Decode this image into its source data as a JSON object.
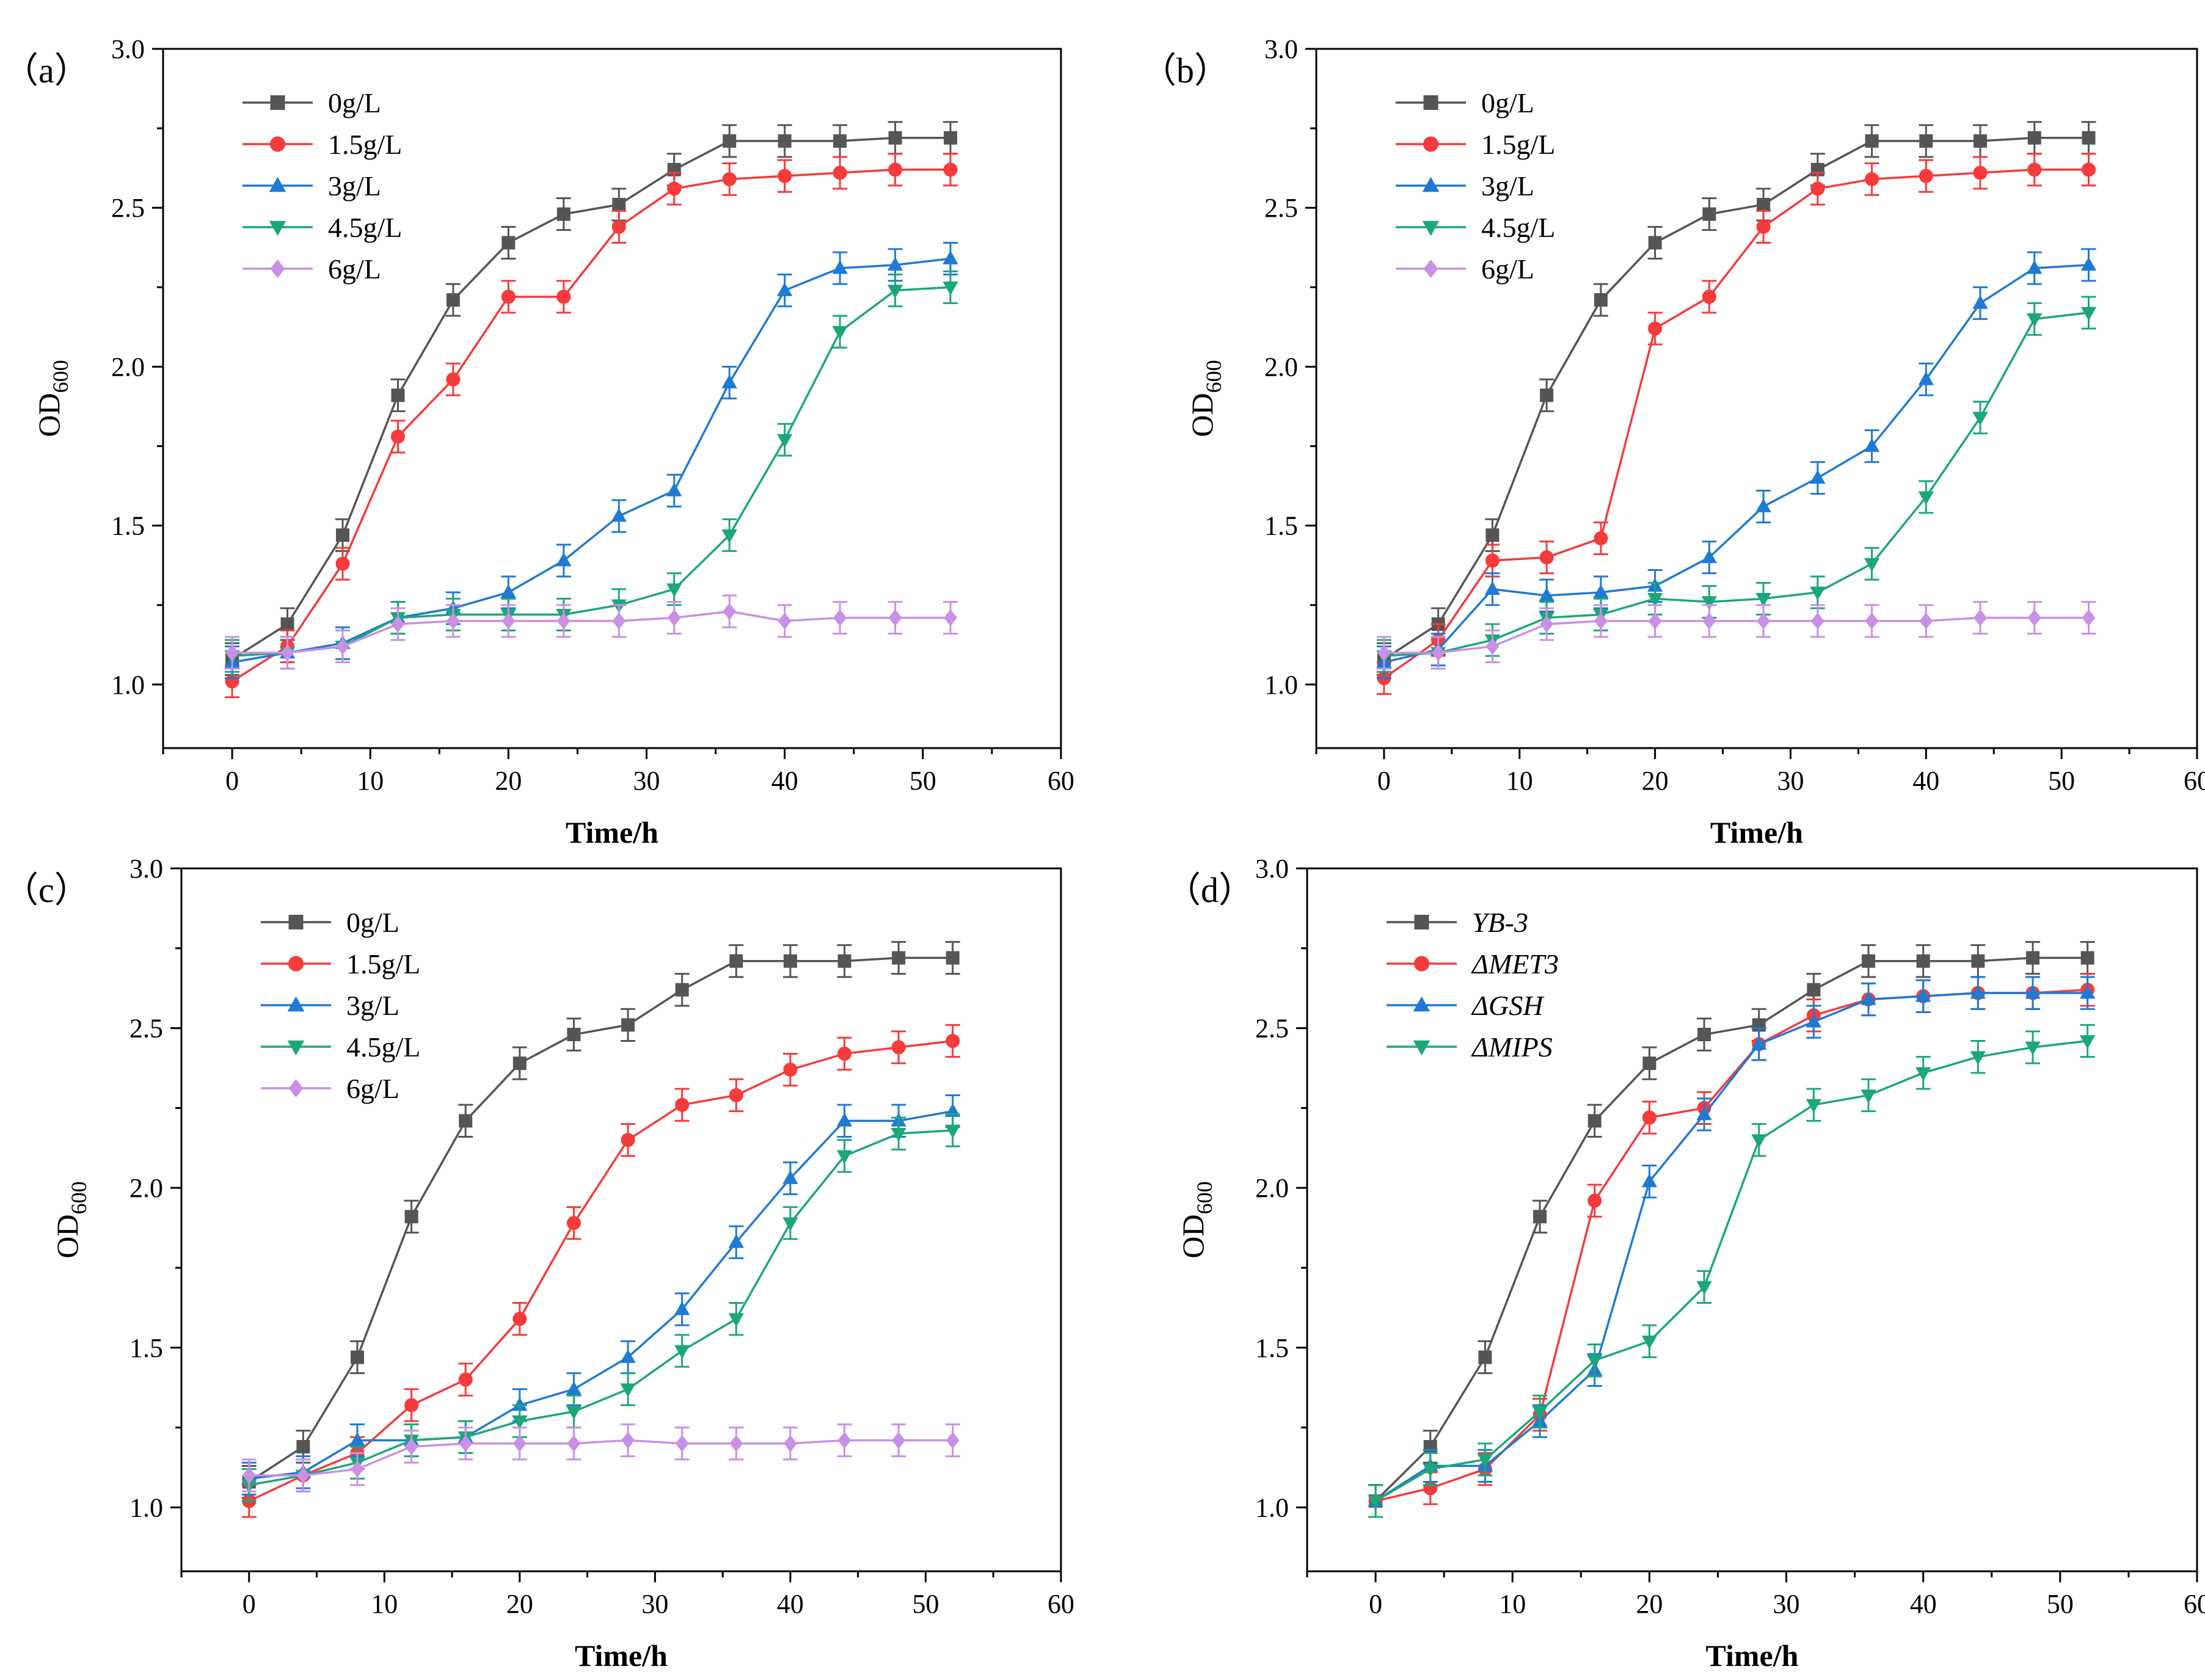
{
  "colors": {
    "black": "#555555",
    "red": "#f53b3b",
    "blue": "#1f7ad4",
    "green": "#1ca77a",
    "violet": "#c990e6"
  },
  "chart_data": [
    {
      "panel_label": "（a）",
      "type": "line",
      "xlabel": "Time/h",
      "ylabel_main": "OD",
      "ylabel_sub": "600",
      "xlim": [
        -5,
        60
      ],
      "ylim": [
        0.8,
        3.0
      ],
      "xticks": [
        "0",
        "10",
        "20",
        "30",
        "40",
        "50",
        "60"
      ],
      "yticks": [
        "1.0",
        "1.5",
        "2.0",
        "2.5",
        "3.0"
      ],
      "legend_position": "top-left",
      "x": [
        0,
        4,
        8,
        12,
        16,
        20,
        24,
        28,
        32,
        36,
        40,
        44,
        48,
        52
      ],
      "series": [
        {
          "name": "0g/L",
          "italic": false,
          "color": "#555555",
          "marker": "square",
          "values": [
            1.08,
            1.19,
            1.47,
            1.91,
            2.21,
            2.39,
            2.48,
            2.51,
            2.62,
            2.71,
            2.71,
            2.71,
            2.72,
            2.72
          ],
          "error": 0.05
        },
        {
          "name": "1.5g/L",
          "italic": false,
          "color": "#f53b3b",
          "marker": "circle",
          "values": [
            1.01,
            1.12,
            1.38,
            1.78,
            1.96,
            2.22,
            2.22,
            2.44,
            2.56,
            2.59,
            2.6,
            2.61,
            2.62,
            2.62
          ],
          "error": 0.05
        },
        {
          "name": "3g/L",
          "italic": false,
          "color": "#1f7ad4",
          "marker": "triangle-up",
          "values": [
            1.07,
            1.1,
            1.13,
            1.21,
            1.24,
            1.29,
            1.39,
            1.53,
            1.61,
            1.95,
            2.24,
            2.31,
            2.32,
            2.34
          ],
          "error": 0.05
        },
        {
          "name": "4.5g/L",
          "italic": false,
          "color": "#1ca77a",
          "marker": "triangle-down",
          "values": [
            1.09,
            1.1,
            1.12,
            1.21,
            1.22,
            1.22,
            1.22,
            1.25,
            1.3,
            1.47,
            1.77,
            2.11,
            2.24,
            2.25
          ],
          "error": 0.05
        },
        {
          "name": "6g/L",
          "italic": false,
          "color": "#c990e6",
          "marker": "diamond",
          "values": [
            1.1,
            1.1,
            1.12,
            1.19,
            1.2,
            1.2,
            1.2,
            1.2,
            1.21,
            1.23,
            1.2,
            1.21,
            1.21,
            1.21
          ],
          "error": 0.05
        }
      ]
    },
    {
      "panel_label": "（b）",
      "type": "line",
      "xlabel": "Time/h",
      "ylabel_main": "OD",
      "ylabel_sub": "600",
      "xlim": [
        -5,
        60
      ],
      "ylim": [
        0.8,
        3.0
      ],
      "xticks": [
        "0",
        "10",
        "20",
        "30",
        "40",
        "50",
        "60"
      ],
      "yticks": [
        "1.0",
        "1.5",
        "2.0",
        "2.5",
        "3.0"
      ],
      "legend_position": "top-left",
      "x": [
        0,
        4,
        8,
        12,
        16,
        20,
        24,
        28,
        32,
        36,
        40,
        44,
        48,
        52
      ],
      "series": [
        {
          "name": "0g/L",
          "italic": false,
          "color": "#555555",
          "marker": "square",
          "values": [
            1.08,
            1.19,
            1.47,
            1.91,
            2.21,
            2.39,
            2.48,
            2.51,
            2.62,
            2.71,
            2.71,
            2.71,
            2.72,
            2.72
          ],
          "error": 0.05
        },
        {
          "name": "1.5g/L",
          "italic": false,
          "color": "#f53b3b",
          "marker": "circle",
          "values": [
            1.02,
            1.14,
            1.39,
            1.4,
            1.46,
            2.12,
            2.22,
            2.44,
            2.56,
            2.59,
            2.6,
            2.61,
            2.62,
            2.62
          ],
          "error": 0.05
        },
        {
          "name": "3g/L",
          "italic": false,
          "color": "#1f7ad4",
          "marker": "triangle-up",
          "values": [
            1.07,
            1.11,
            1.3,
            1.28,
            1.29,
            1.31,
            1.4,
            1.56,
            1.65,
            1.75,
            1.96,
            2.2,
            2.31,
            2.32
          ],
          "error": 0.05
        },
        {
          "name": "4.5g/L",
          "italic": false,
          "color": "#1ca77a",
          "marker": "triangle-down",
          "values": [
            1.09,
            1.1,
            1.14,
            1.21,
            1.22,
            1.27,
            1.26,
            1.27,
            1.29,
            1.38,
            1.59,
            1.84,
            2.15,
            2.17
          ],
          "error": 0.05
        },
        {
          "name": "6g/L",
          "italic": false,
          "color": "#c990e6",
          "marker": "diamond",
          "values": [
            1.1,
            1.1,
            1.12,
            1.19,
            1.2,
            1.2,
            1.2,
            1.2,
            1.2,
            1.2,
            1.2,
            1.21,
            1.21,
            1.21
          ],
          "error": 0.05
        }
      ]
    },
    {
      "panel_label": "（c）",
      "type": "line",
      "xlabel": "Time/h",
      "ylabel_main": "OD",
      "ylabel_sub": "600",
      "xlim": [
        -5,
        60
      ],
      "ylim": [
        0.8,
        3.0
      ],
      "xticks": [
        "0",
        "10",
        "20",
        "30",
        "40",
        "50",
        "60"
      ],
      "yticks": [
        "1.0",
        "1.5",
        "2.0",
        "2.5",
        "3.0"
      ],
      "legend_position": "top-left",
      "x": [
        0,
        4,
        8,
        12,
        16,
        20,
        24,
        28,
        32,
        36,
        40,
        44,
        48,
        52
      ],
      "series": [
        {
          "name": "0g/L",
          "italic": false,
          "color": "#555555",
          "marker": "square",
          "values": [
            1.08,
            1.19,
            1.47,
            1.91,
            2.21,
            2.39,
            2.48,
            2.51,
            2.62,
            2.71,
            2.71,
            2.71,
            2.72,
            2.72
          ],
          "error": 0.05
        },
        {
          "name": "1.5g/L",
          "italic": false,
          "color": "#f53b3b",
          "marker": "circle",
          "values": [
            1.02,
            1.1,
            1.17,
            1.32,
            1.4,
            1.59,
            1.89,
            2.15,
            2.26,
            2.29,
            2.37,
            2.42,
            2.44,
            2.46
          ],
          "error": 0.05
        },
        {
          "name": "3g/L",
          "italic": false,
          "color": "#1f7ad4",
          "marker": "triangle-up",
          "values": [
            1.09,
            1.11,
            1.21,
            1.21,
            1.22,
            1.32,
            1.37,
            1.47,
            1.62,
            1.83,
            2.03,
            2.21,
            2.21,
            2.24
          ],
          "error": 0.05
        },
        {
          "name": "4.5g/L",
          "italic": false,
          "color": "#1ca77a",
          "marker": "triangle-down",
          "values": [
            1.07,
            1.1,
            1.14,
            1.21,
            1.22,
            1.27,
            1.3,
            1.37,
            1.49,
            1.59,
            1.89,
            2.1,
            2.17,
            2.18
          ],
          "error": 0.05
        },
        {
          "name": "6g/L",
          "italic": false,
          "color": "#c990e6",
          "marker": "diamond",
          "values": [
            1.1,
            1.1,
            1.12,
            1.19,
            1.2,
            1.2,
            1.2,
            1.21,
            1.2,
            1.2,
            1.2,
            1.21,
            1.21,
            1.21
          ],
          "error": 0.05
        }
      ]
    },
    {
      "panel_label": "（d）",
      "type": "line",
      "xlabel": "Time/h",
      "ylabel_main": "OD",
      "ylabel_sub": "600",
      "xlim": [
        -5,
        60
      ],
      "ylim": [
        0.8,
        3.0
      ],
      "xticks": [
        "0",
        "10",
        "20",
        "30",
        "40",
        "50",
        "60"
      ],
      "yticks": [
        "1.0",
        "1.5",
        "2.0",
        "2.5",
        "3.0"
      ],
      "legend_position": "top-left",
      "x": [
        0,
        4,
        8,
        12,
        16,
        20,
        24,
        28,
        32,
        36,
        40,
        44,
        48,
        52
      ],
      "series": [
        {
          "name": "YB-3",
          "italic": true,
          "color": "#555555",
          "marker": "square",
          "values": [
            1.02,
            1.19,
            1.47,
            1.91,
            2.21,
            2.39,
            2.48,
            2.51,
            2.62,
            2.71,
            2.71,
            2.71,
            2.72,
            2.72
          ],
          "error": 0.05
        },
        {
          "name": "ΔMET3",
          "italic": true,
          "color": "#f53b3b",
          "marker": "circle",
          "values": [
            1.02,
            1.06,
            1.12,
            1.29,
            1.96,
            2.22,
            2.25,
            2.45,
            2.54,
            2.59,
            2.6,
            2.61,
            2.61,
            2.62
          ],
          "error": 0.05
        },
        {
          "name": "ΔGSH",
          "italic": true,
          "color": "#1f7ad4",
          "marker": "triangle-up",
          "values": [
            1.02,
            1.13,
            1.13,
            1.27,
            1.43,
            2.02,
            2.23,
            2.45,
            2.52,
            2.59,
            2.6,
            2.61,
            2.61,
            2.61
          ],
          "error": 0.05
        },
        {
          "name": "ΔMIPS",
          "italic": true,
          "color": "#1ca77a",
          "marker": "triangle-down",
          "values": [
            1.02,
            1.12,
            1.15,
            1.3,
            1.46,
            1.52,
            1.69,
            2.15,
            2.26,
            2.29,
            2.36,
            2.41,
            2.44,
            2.46
          ],
          "error": 0.05
        }
      ]
    }
  ]
}
